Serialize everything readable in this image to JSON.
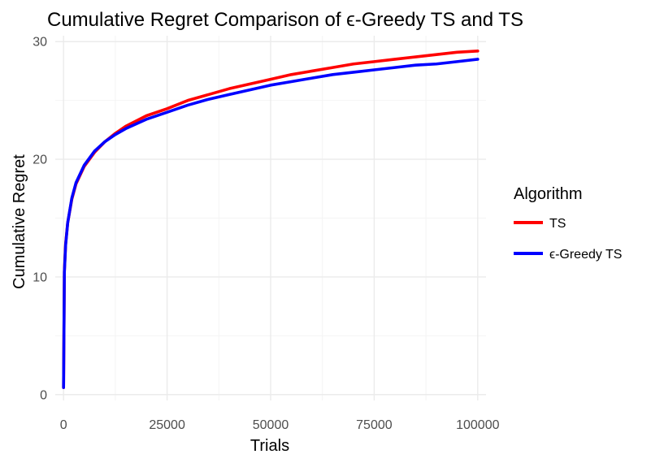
{
  "chart_data": {
    "type": "line",
    "title": "Cumulative Regret Comparison of ϵ-Greedy TS and TS",
    "xlabel": "Trials",
    "ylabel": "Cumulative Regret",
    "xlim": [
      -2000,
      102000
    ],
    "ylim": [
      -0.5,
      30.5
    ],
    "x_ticks": [
      0,
      25000,
      50000,
      75000,
      100000
    ],
    "y_ticks": [
      0,
      10,
      20,
      30
    ],
    "x_minor_ticks": [
      12500,
      37500,
      62500,
      87500
    ],
    "y_minor_ticks": [
      5,
      15,
      25
    ],
    "grid": true,
    "legend": {
      "title": "Algorithm",
      "position": "right"
    },
    "series": [
      {
        "name": "TS",
        "color": "#ff0000",
        "points": [
          [
            1,
            0.6
          ],
          [
            200,
            10.5
          ],
          [
            500,
            12.8
          ],
          [
            1000,
            14.6
          ],
          [
            2000,
            16.6
          ],
          [
            3000,
            17.9
          ],
          [
            5000,
            19.4
          ],
          [
            7500,
            20.6
          ],
          [
            10000,
            21.5
          ],
          [
            12500,
            22.2
          ],
          [
            15000,
            22.8
          ],
          [
            20000,
            23.7
          ],
          [
            25000,
            24.3
          ],
          [
            30000,
            25.0
          ],
          [
            35000,
            25.5
          ],
          [
            40000,
            26.0
          ],
          [
            45000,
            26.4
          ],
          [
            50000,
            26.8
          ],
          [
            55000,
            27.2
          ],
          [
            60000,
            27.5
          ],
          [
            65000,
            27.8
          ],
          [
            70000,
            28.1
          ],
          [
            75000,
            28.3
          ],
          [
            80000,
            28.5
          ],
          [
            85000,
            28.7
          ],
          [
            90000,
            28.9
          ],
          [
            95000,
            29.1
          ],
          [
            100000,
            29.2
          ]
        ]
      },
      {
        "name": "ϵ-Greedy TS",
        "color": "#0000ff",
        "points": [
          [
            1,
            0.6
          ],
          [
            200,
            10.4
          ],
          [
            500,
            12.7
          ],
          [
            1000,
            14.6
          ],
          [
            2000,
            16.7
          ],
          [
            3000,
            18.0
          ],
          [
            5000,
            19.5
          ],
          [
            7500,
            20.7
          ],
          [
            10000,
            21.5
          ],
          [
            12500,
            22.1
          ],
          [
            15000,
            22.6
          ],
          [
            20000,
            23.4
          ],
          [
            25000,
            24.0
          ],
          [
            30000,
            24.6
          ],
          [
            35000,
            25.1
          ],
          [
            40000,
            25.5
          ],
          [
            45000,
            25.9
          ],
          [
            50000,
            26.3
          ],
          [
            55000,
            26.6
          ],
          [
            60000,
            26.9
          ],
          [
            65000,
            27.2
          ],
          [
            70000,
            27.4
          ],
          [
            75000,
            27.6
          ],
          [
            80000,
            27.8
          ],
          [
            85000,
            28.0
          ],
          [
            90000,
            28.1
          ],
          [
            95000,
            28.3
          ],
          [
            100000,
            28.5
          ]
        ]
      }
    ]
  }
}
